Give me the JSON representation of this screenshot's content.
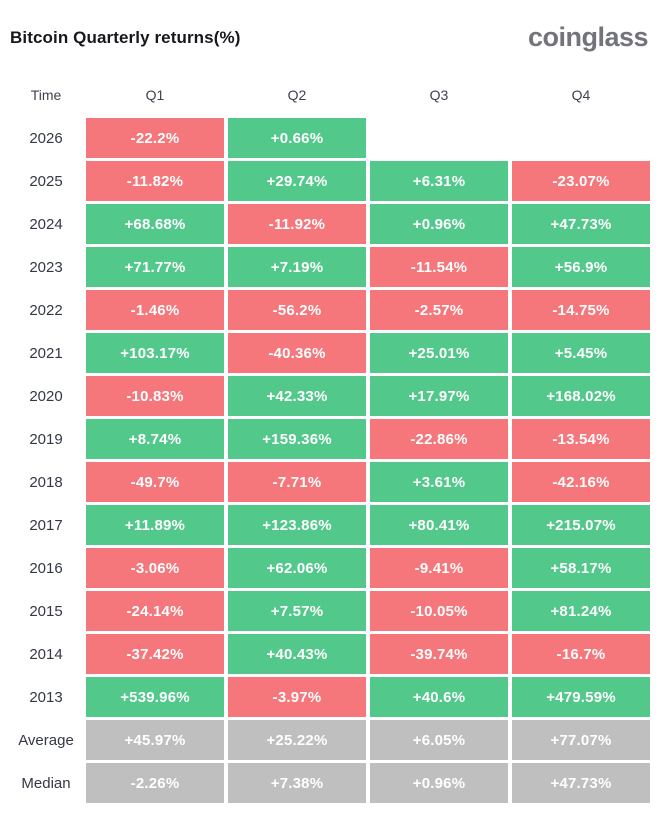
{
  "header": {
    "title": "Bitcoin Quarterly returns(%)",
    "brand": "coinglass"
  },
  "colors": {
    "positive": "#52c98b",
    "negative": "#f5767b",
    "summary": "#bfbfbf",
    "cell_text": "#ffffff"
  },
  "chart_data": {
    "type": "table",
    "title": "Bitcoin Quarterly returns(%)",
    "columns": [
      "Time",
      "Q1",
      "Q2",
      "Q3",
      "Q4"
    ],
    "rows": [
      {
        "label": "2026",
        "kind": "year",
        "values": [
          "-22.2%",
          "+0.66%",
          null,
          null
        ]
      },
      {
        "label": "2025",
        "kind": "year",
        "values": [
          "-11.82%",
          "+29.74%",
          "+6.31%",
          "-23.07%"
        ]
      },
      {
        "label": "2024",
        "kind": "year",
        "values": [
          "+68.68%",
          "-11.92%",
          "+0.96%",
          "+47.73%"
        ]
      },
      {
        "label": "2023",
        "kind": "year",
        "values": [
          "+71.77%",
          "+7.19%",
          "-11.54%",
          "+56.9%"
        ]
      },
      {
        "label": "2022",
        "kind": "year",
        "values": [
          "-1.46%",
          "-56.2%",
          "-2.57%",
          "-14.75%"
        ]
      },
      {
        "label": "2021",
        "kind": "year",
        "values": [
          "+103.17%",
          "-40.36%",
          "+25.01%",
          "+5.45%"
        ]
      },
      {
        "label": "2020",
        "kind": "year",
        "values": [
          "-10.83%",
          "+42.33%",
          "+17.97%",
          "+168.02%"
        ]
      },
      {
        "label": "2019",
        "kind": "year",
        "values": [
          "+8.74%",
          "+159.36%",
          "-22.86%",
          "-13.54%"
        ]
      },
      {
        "label": "2018",
        "kind": "year",
        "values": [
          "-49.7%",
          "-7.71%",
          "+3.61%",
          "-42.16%"
        ]
      },
      {
        "label": "2017",
        "kind": "year",
        "values": [
          "+11.89%",
          "+123.86%",
          "+80.41%",
          "+215.07%"
        ]
      },
      {
        "label": "2016",
        "kind": "year",
        "values": [
          "-3.06%",
          "+62.06%",
          "-9.41%",
          "+58.17%"
        ]
      },
      {
        "label": "2015",
        "kind": "year",
        "values": [
          "-24.14%",
          "+7.57%",
          "-10.05%",
          "+81.24%"
        ]
      },
      {
        "label": "2014",
        "kind": "year",
        "values": [
          "-37.42%",
          "+40.43%",
          "-39.74%",
          "-16.7%"
        ]
      },
      {
        "label": "2013",
        "kind": "year",
        "values": [
          "+539.96%",
          "-3.97%",
          "+40.6%",
          "+479.59%"
        ]
      },
      {
        "label": "Average",
        "kind": "summary",
        "values": [
          "+45.97%",
          "+25.22%",
          "+6.05%",
          "+77.07%"
        ]
      },
      {
        "label": "Median",
        "kind": "summary",
        "values": [
          "-2.26%",
          "+7.38%",
          "+0.96%",
          "+47.73%"
        ]
      }
    ]
  }
}
